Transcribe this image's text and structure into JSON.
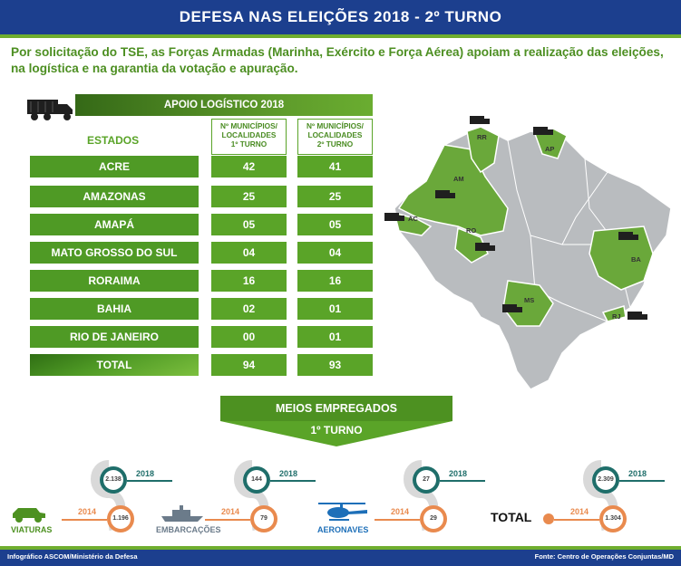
{
  "header": {
    "title": "DEFESA NAS ELEIÇÕES 2018 - 2º TURNO"
  },
  "intro": "Por solicitação do TSE, as Forças Armadas (Marinha, Exército e Força Aérea) apoiam a realização das eleições, na logística e na garantia da votação e apuração.",
  "table": {
    "banner": "APOIO LOGÍSTICO 2018",
    "states_header": "ESTADOS",
    "col1_header": [
      "Nº MUNICÍPIOS/",
      "LOCALIDADES",
      "1º TURNO"
    ],
    "col2_header": [
      "Nº MUNICÍPIOS/",
      "LOCALIDADES",
      "2º TURNO"
    ],
    "rows": [
      {
        "state": "ACRE",
        "t1": "42",
        "t2": "41"
      },
      {
        "state": "AMAZONAS",
        "t1": "25",
        "t2": "25"
      },
      {
        "state": "AMAPÁ",
        "t1": "05",
        "t2": "05"
      },
      {
        "state": "MATO GROSSO DO SUL",
        "t1": "04",
        "t2": "04"
      },
      {
        "state": "RORAIMA",
        "t1": "16",
        "t2": "16"
      },
      {
        "state": "BAHIA",
        "t1": "02",
        "t2": "01"
      },
      {
        "state": "RIO DE JANEIRO",
        "t1": "00",
        "t2": "01"
      },
      {
        "state": "TOTAL",
        "t1": "94",
        "t2": "93"
      }
    ]
  },
  "map": {
    "labels": [
      "RR",
      "AP",
      "AM",
      "AC",
      "RO",
      "BA",
      "MS",
      "RJ"
    ]
  },
  "meios": {
    "title": "MEIOS EMPREGADOS",
    "subtitle": "1º TURNO",
    "year_2018": "2018",
    "year_2014": "2014",
    "items": [
      {
        "label": "VIATURAS",
        "v2018": "2.138",
        "v2014": "1.196"
      },
      {
        "label": "EMBARCAÇÕES",
        "v2018": "144",
        "v2014": "79"
      },
      {
        "label": "AERONAVES",
        "v2018": "27",
        "v2014": "29"
      },
      {
        "label": "TOTAL",
        "v2018": "2.309",
        "v2014": "1.304"
      }
    ]
  },
  "footer": {
    "left": "Infográfico ASCOM/Ministério da Defesa",
    "right": "Fonte: Centro de Operações Conjuntas/MD"
  },
  "colors": {
    "navy": "#1c3f8e",
    "green": "#5aa428",
    "teal": "#1f6e6a",
    "orange": "#e98a4e"
  }
}
